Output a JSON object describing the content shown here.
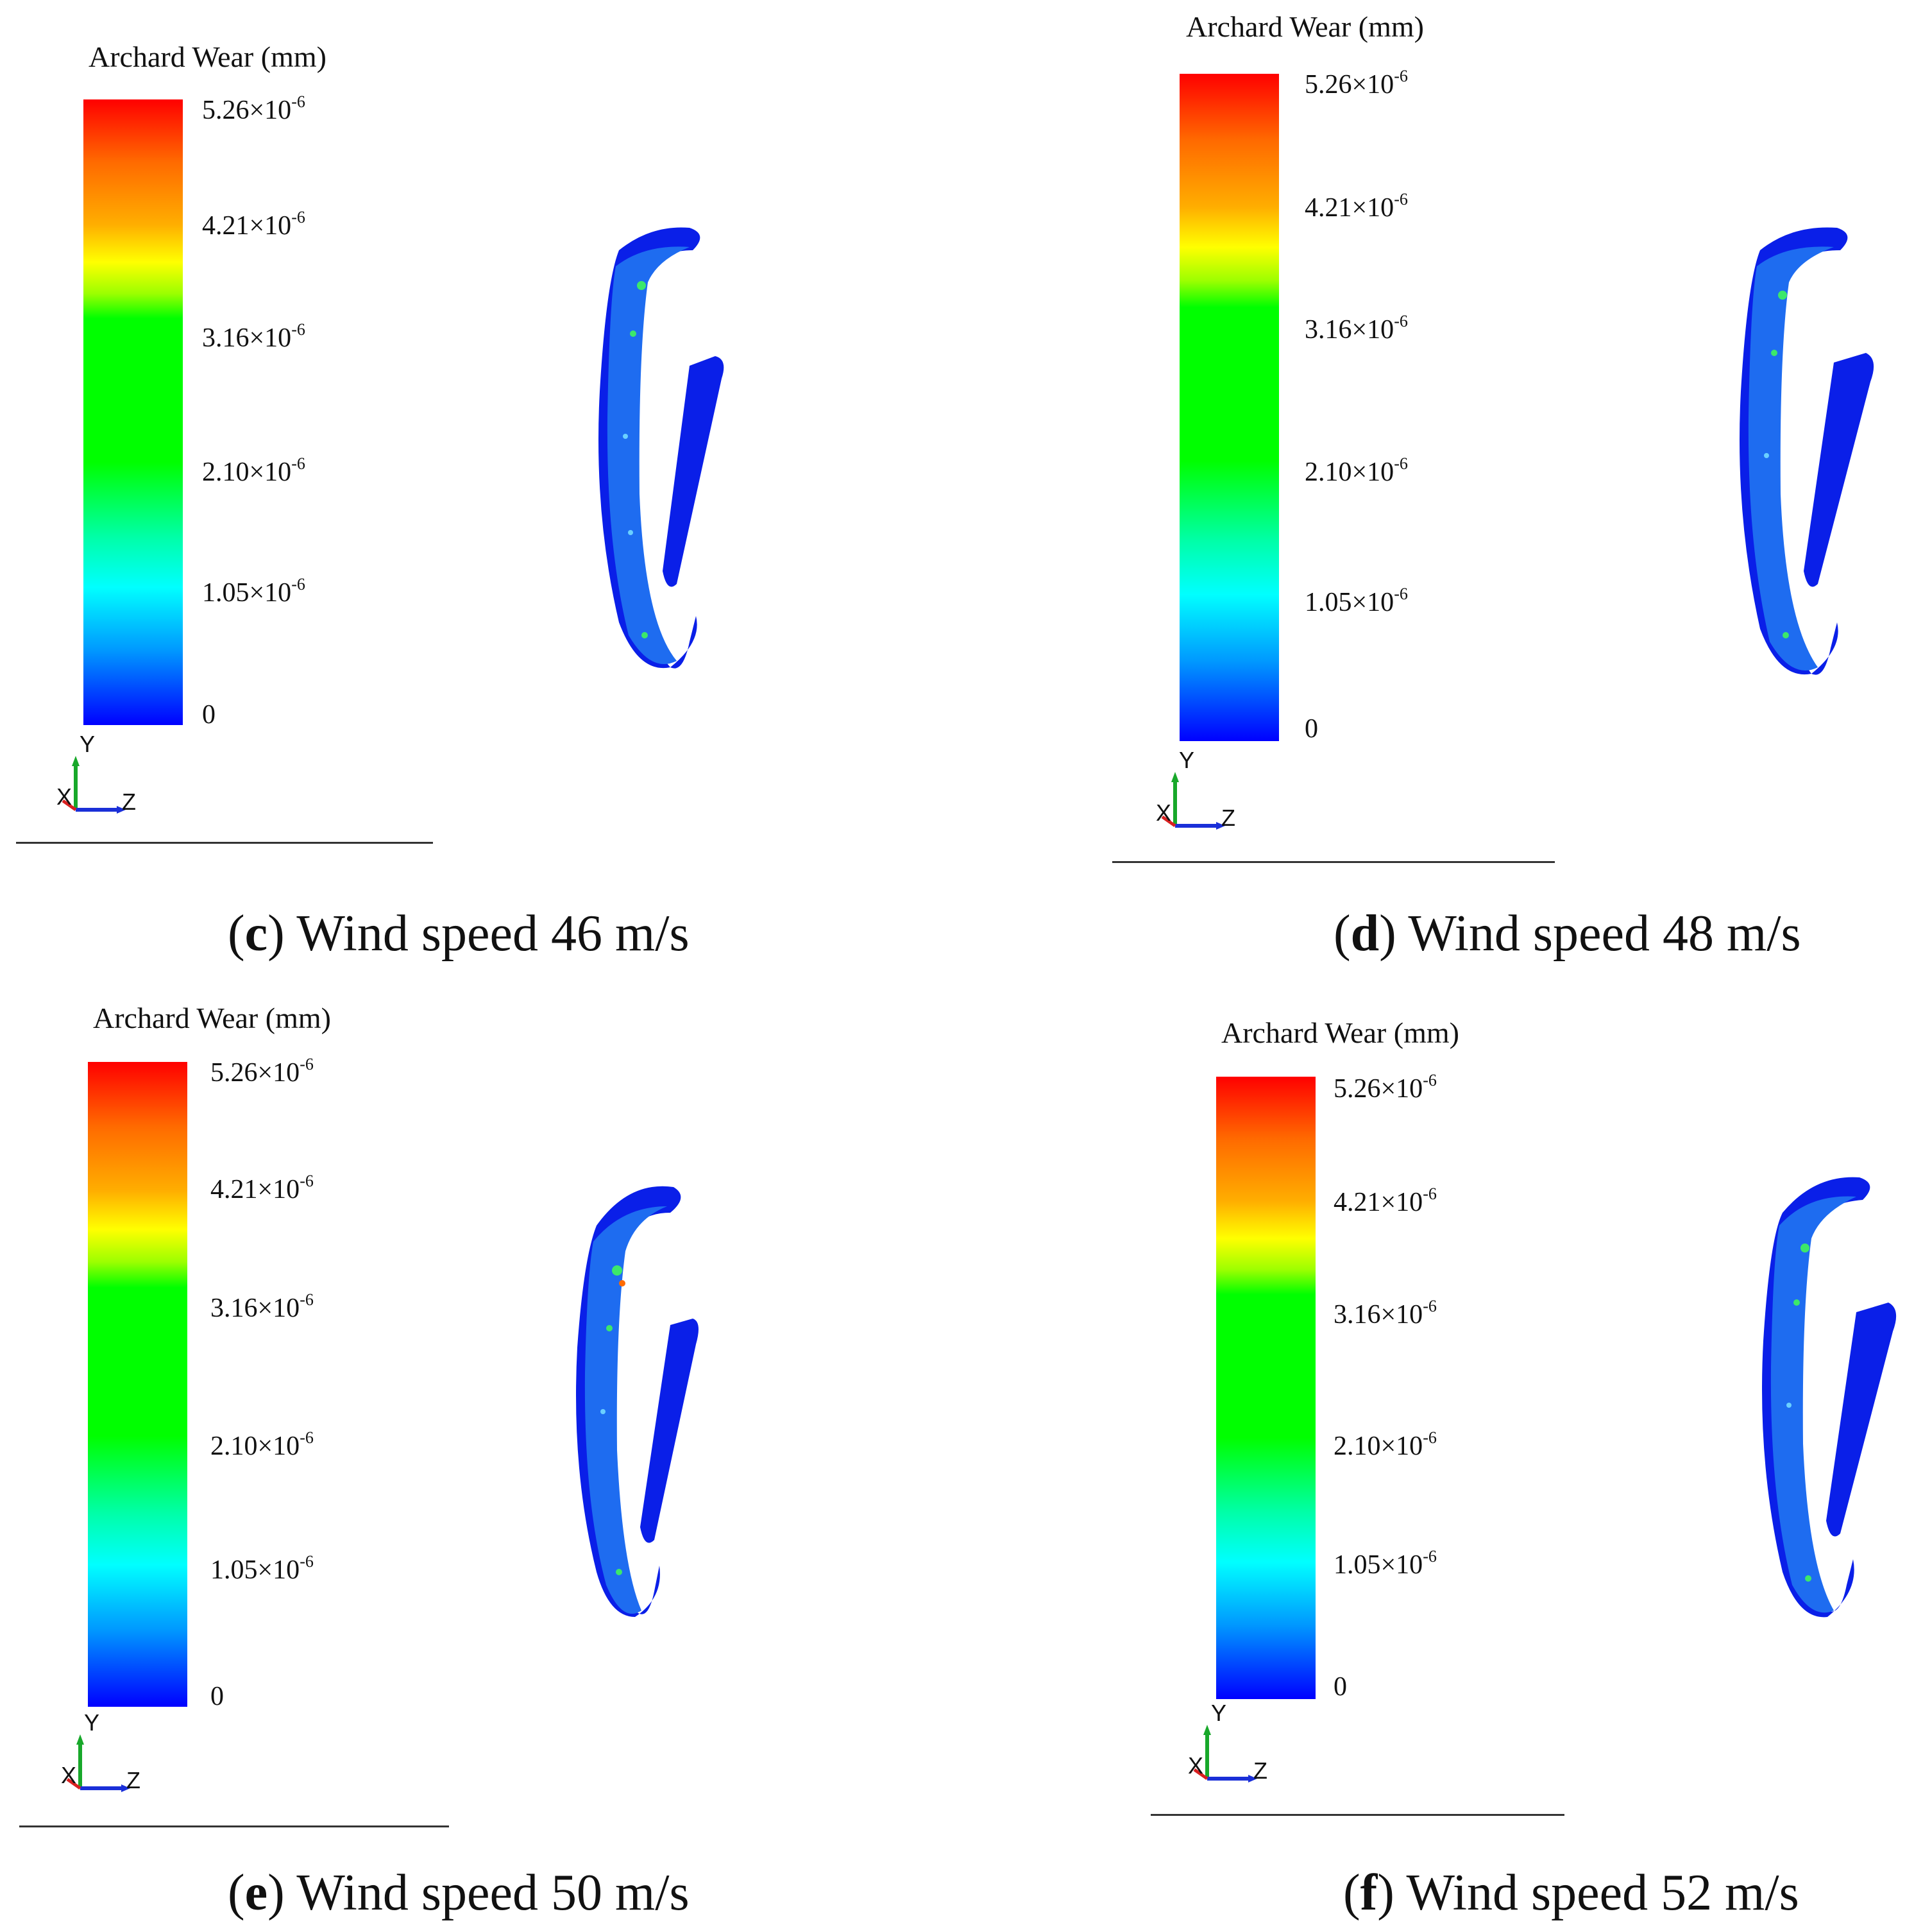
{
  "legend": {
    "title": "Archard Wear (mm)",
    "ticks": [
      {
        "mantissa": "5.26",
        "times": "×10",
        "exp": "-6"
      },
      {
        "mantissa": "4.21",
        "times": "×10",
        "exp": "-6"
      },
      {
        "mantissa": "3.16",
        "times": "×10",
        "exp": "-6"
      },
      {
        "mantissa": "2.10",
        "times": "×10",
        "exp": "-6"
      },
      {
        "mantissa": "1.05",
        "times": "×10",
        "exp": "-6"
      },
      {
        "mantissa": "0",
        "times": "",
        "exp": ""
      }
    ],
    "axes": {
      "y": "Y",
      "x": "X",
      "z": "Z"
    },
    "colors": [
      "#ff0000",
      "#ffff00",
      "#00ff00",
      "#00ffff",
      "#0000ff"
    ]
  },
  "panels": {
    "c": {
      "letter": "c",
      "open": "(",
      "close": ")",
      "caption": " Wind speed 46 m/s"
    },
    "d": {
      "letter": "d",
      "open": "(",
      "close": ")",
      "caption": " Wind speed 48 m/s"
    },
    "e": {
      "letter": "e",
      "open": "(",
      "close": ")",
      "caption": " Wind speed 50 m/s"
    },
    "f": {
      "letter": "f",
      "open": "(",
      "close": ")",
      "caption": " Wind speed 52 m/s"
    }
  },
  "model_colors": {
    "body": "#0a1fe8",
    "surface": "#1e6cf0",
    "hotspot": "#3ce86a"
  }
}
